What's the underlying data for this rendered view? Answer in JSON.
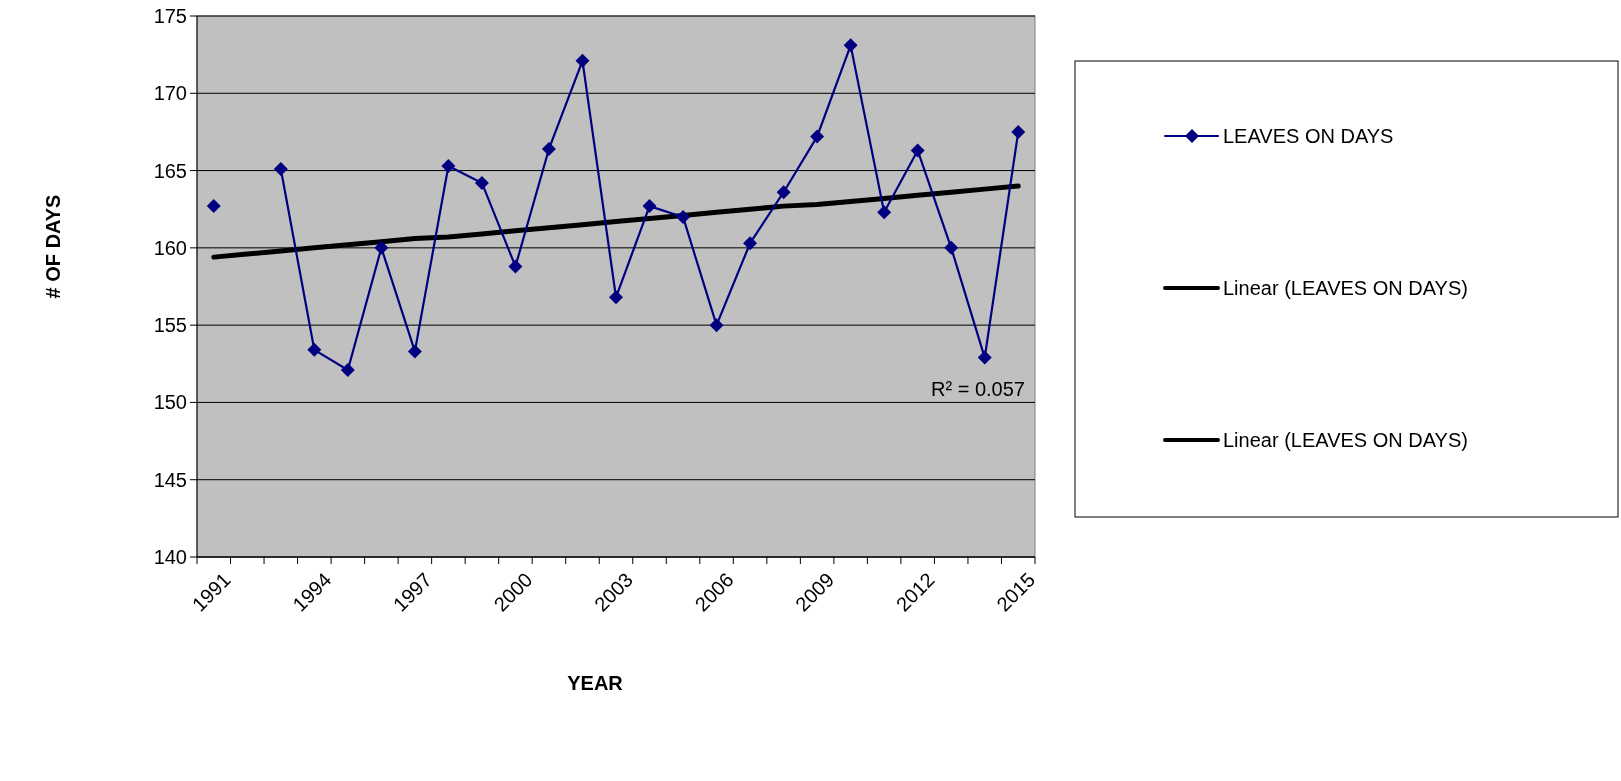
{
  "chart_data": {
    "type": "line",
    "xlabel": "YEAR",
    "ylabel": "# OF DAYS",
    "categories": [
      "1991",
      null,
      null,
      "1994",
      null,
      null,
      "1997",
      null,
      null,
      "2000",
      null,
      null,
      "2003",
      null,
      null,
      "2006",
      null,
      null,
      "2009",
      null,
      null,
      "2012",
      null,
      null,
      "2015"
    ],
    "series": [
      {
        "name": "LEAVES ON DAYS",
        "color": "#000080",
        "marker": "diamond",
        "values": [
          162.7,
          null,
          165.1,
          153.4,
          152.1,
          160.0,
          153.3,
          165.3,
          164.2,
          158.8,
          166.4,
          172.1,
          156.8,
          162.7,
          162.0,
          155.0,
          160.3,
          163.6,
          167.2,
          173.1,
          162.3,
          166.3,
          160.0,
          152.9,
          167.5
        ]
      },
      {
        "name": "Linear (LEAVES ON DAYS)",
        "color": "#000000",
        "marker": "none",
        "values": [
          159.4,
          159.6,
          159.8,
          160.0,
          160.2,
          160.4,
          160.6,
          160.7,
          160.9,
          161.1,
          161.3,
          161.5,
          161.7,
          161.9,
          162.1,
          162.3,
          162.5,
          162.7,
          162.8,
          163.0,
          163.2,
          163.4,
          163.6,
          163.8,
          164.0
        ]
      },
      {
        "name": "Linear (LEAVES ON DAYS)",
        "color": "#000000",
        "marker": "none",
        "values": [
          null,
          null,
          null,
          null,
          null,
          null,
          null,
          null,
          null,
          null,
          null,
          null,
          null,
          null,
          null,
          null,
          null,
          null,
          null,
          null,
          null,
          null,
          null,
          null,
          null
        ]
      }
    ],
    "ylim": [
      140,
      175
    ],
    "yticks": [
      140,
      145,
      150,
      155,
      160,
      165,
      170,
      175
    ],
    "grid": "y",
    "legend": "right",
    "annotations": [
      "R² = 0.057"
    ]
  }
}
